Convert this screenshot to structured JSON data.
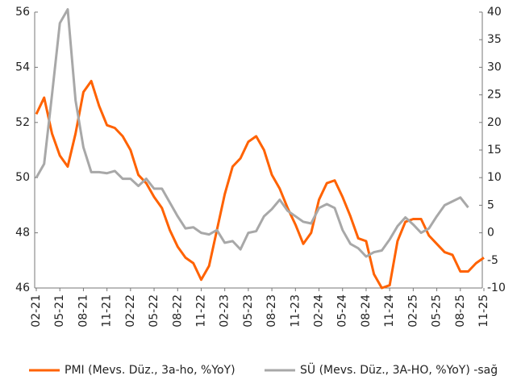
{
  "chart_data": {
    "type": "line",
    "categories": [
      "02-21",
      null,
      null,
      "05-21",
      null,
      null,
      "08-21",
      null,
      null,
      "11-21",
      null,
      null,
      "02-22",
      null,
      null,
      "05-22",
      null,
      null,
      "08-22",
      null,
      null,
      "11-22",
      null,
      null,
      "02-23",
      null,
      null,
      "05-23",
      null,
      null,
      "08-23",
      null,
      null,
      "11-23",
      null,
      null,
      "02-24",
      null,
      null,
      "05-24",
      null,
      null,
      "08-24",
      null,
      null,
      "11-24",
      null,
      null,
      "02-25",
      null,
      null,
      "05-25",
      null,
      null,
      "08-25",
      null,
      null,
      "11-25"
    ],
    "series": [
      {
        "name": "PMI (Mevs. Düz., 3a-ho, %YoY)",
        "color": "#ff6200",
        "axis": "y",
        "values": [
          52.3,
          52.9,
          51.6,
          50.8,
          50.4,
          51.6,
          53.1,
          53.5,
          52.6,
          51.9,
          51.8,
          51.5,
          51.0,
          50.1,
          49.8,
          49.3,
          48.9,
          48.1,
          47.5,
          47.1,
          46.9,
          46.3,
          46.8,
          48.1,
          49.4,
          50.4,
          50.7,
          51.3,
          51.5,
          51.0,
          50.1,
          49.6,
          48.9,
          48.3,
          47.6,
          48.0,
          49.2,
          49.8,
          49.9,
          49.3,
          48.6,
          47.8,
          47.7,
          46.5,
          46.0,
          46.1,
          47.7,
          48.4,
          48.5,
          48.5,
          47.9,
          47.6,
          47.3,
          47.2,
          46.6,
          46.6,
          46.9,
          47.1
        ]
      },
      {
        "name": "SÜ (Mevs. Düz., 3A-HO, %YoY) -sağ",
        "color": "#a8a8a8",
        "axis": "y2",
        "values": [
          10,
          12.5,
          25,
          38,
          40.5,
          24,
          15.5,
          11,
          11,
          10.8,
          11.2,
          9.8,
          9.8,
          8.5,
          9.8,
          8,
          8,
          5.5,
          3,
          0.8,
          1,
          0,
          -0.3,
          0.5,
          -1.8,
          -1.5,
          -3,
          0,
          0.3,
          3,
          4.3,
          6,
          4,
          3,
          2,
          1.7,
          4.5,
          5.2,
          4.5,
          0.5,
          -2,
          -2.8,
          -4.3,
          -3.5,
          -3.2,
          -1.2,
          1.2,
          2.8,
          1.5,
          0,
          0.8,
          3,
          5,
          5.7,
          6.4,
          4.6,
          null,
          null
        ]
      }
    ],
    "ylim": [
      46,
      56
    ],
    "yticks": [
      46,
      48,
      50,
      52,
      54,
      56
    ],
    "y2lim": [
      -10,
      40
    ],
    "y2ticks": [
      -10,
      -5,
      0,
      5,
      10,
      15,
      20,
      25,
      30,
      35,
      40
    ],
    "grid": false
  }
}
